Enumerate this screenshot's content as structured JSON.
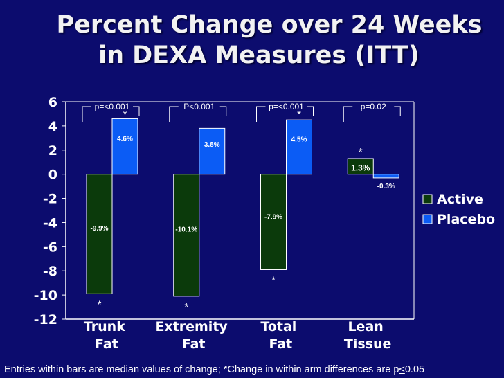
{
  "title": {
    "line1": "Percent Change over 24 Weeks",
    "line2": "in DEXA Measures (ITT)"
  },
  "footnote": {
    "part1": "Entries within bars are median values of change; *Change in within arm differences are p",
    "le": "<",
    "part2": "0.05"
  },
  "colors": {
    "active": "#0b3a0b",
    "placebo": "#0b5cf5",
    "background": "#0c0c6e",
    "text": "#ffffff"
  },
  "chart_data": {
    "type": "bar",
    "title": "Percent Change over 24 Weeks in DEXA Measures (ITT)",
    "xlabel": "",
    "ylabel": "",
    "ylim": [
      -12,
      6
    ],
    "yticks": [
      6,
      4,
      2,
      0,
      -2,
      -4,
      -6,
      -8,
      -10,
      -12
    ],
    "ytick_labels": [
      "6",
      "4",
      "2",
      "0",
      "-2",
      "-4",
      "-6",
      "-8",
      "-10",
      "-12"
    ],
    "categories": [
      {
        "line1": "Trunk",
        "line2": "Fat"
      },
      {
        "line1": "Extremity",
        "line2": "Fat"
      },
      {
        "line1": "Total",
        "line2": "Fat"
      },
      {
        "line1": "Lean",
        "line2": "Tissue"
      }
    ],
    "series": [
      {
        "name": "Active",
        "values": [
          -9.9,
          -10.1,
          -7.9,
          1.3
        ],
        "labels": [
          "-9.9%",
          "-10.1%",
          "-7.9%",
          "1.3%"
        ]
      },
      {
        "name": "Placebo",
        "values": [
          4.6,
          3.8,
          4.5,
          -0.3
        ],
        "labels": [
          "4.6%",
          "3.8%",
          "4.5%",
          "-0.3%"
        ]
      }
    ],
    "legend": {
      "position": "right",
      "entries": [
        "Active",
        "Placebo"
      ]
    },
    "significance": [
      {
        "category": 0,
        "label": "p=<0.001"
      },
      {
        "category": 1,
        "label": "P<0.001"
      },
      {
        "category": 2,
        "label": "p=<0.001"
      },
      {
        "category": 3,
        "label": "p=0.02"
      }
    ],
    "asterisk_text": "*",
    "asterisks": [
      {
        "category": 0,
        "series": "Active"
      },
      {
        "category": 0,
        "series": "Placebo"
      },
      {
        "category": 1,
        "series": "Active"
      },
      {
        "category": 2,
        "series": "Active"
      },
      {
        "category": 2,
        "series": "Placebo"
      },
      {
        "category": 3,
        "series": "Active"
      }
    ]
  }
}
